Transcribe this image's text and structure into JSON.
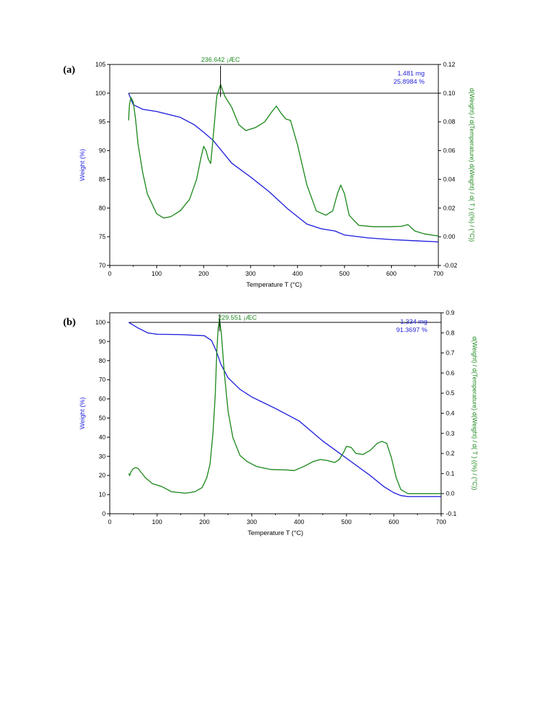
{
  "chart_data": [
    {
      "panel_label": "(a)",
      "type": "line",
      "xlabel": "Temperature  T  (°C)",
      "ylabel_left": "Weight  (%)",
      "ylabel_right": "d(Weight) / d(Temperature) d(Weight) / d( T )  ((%) / (°C))",
      "xlim": [
        0,
        700
      ],
      "ylim_left": [
        70,
        105
      ],
      "ylim_right": [
        -0.02,
        0.12
      ],
      "xticks": [
        0,
        100,
        200,
        300,
        400,
        500,
        600,
        700
      ],
      "yticks_left": [
        70,
        75,
        80,
        85,
        90,
        95,
        100,
        105
      ],
      "yticks_right": [
        "-0.02",
        "0.00",
        "0.02",
        "0.04",
        "0.06",
        "0.08",
        "0.10",
        "0.12"
      ],
      "annotations": {
        "peak": "236.642 ¡ÆC",
        "mass": "1.481 mg",
        "loss": "25.8984 %"
      },
      "colors": {
        "weight": "#2222dd",
        "derivative": "#1e8a1e",
        "axis": "#000000"
      },
      "reference_line_y": 100,
      "series": [
        {
          "name": "Weight",
          "axis": "left",
          "x": [
            40,
            50,
            70,
            100,
            150,
            180,
            200,
            220,
            236,
            260,
            300,
            340,
            380,
            420,
            450,
            480,
            500,
            550,
            600,
            650,
            700
          ],
          "y": [
            100,
            98,
            97.2,
            96.8,
            95.8,
            94.5,
            93.2,
            91.8,
            90.2,
            87.8,
            85.4,
            82.8,
            79.8,
            77.2,
            76.4,
            76.0,
            75.3,
            74.8,
            74.5,
            74.3,
            74.1
          ]
        },
        {
          "name": "Derivative",
          "axis": "right",
          "x": [
            40,
            42,
            45,
            50,
            55,
            60,
            70,
            80,
            100,
            115,
            130,
            150,
            170,
            185,
            195,
            200,
            205,
            210,
            215,
            220,
            228,
            236,
            245,
            260,
            275,
            290,
            310,
            330,
            345,
            355,
            365,
            375,
            385,
            400,
            420,
            440,
            460,
            475,
            485,
            492,
            500,
            510,
            530,
            560,
            600,
            620,
            630,
            635,
            640,
            650,
            670,
            700
          ],
          "y": [
            0.081,
            0.092,
            0.097,
            0.094,
            0.082,
            0.065,
            0.045,
            0.03,
            0.016,
            0.013,
            0.014,
            0.018,
            0.026,
            0.04,
            0.056,
            0.063,
            0.06,
            0.054,
            0.051,
            0.068,
            0.098,
            0.106,
            0.098,
            0.09,
            0.078,
            0.074,
            0.076,
            0.08,
            0.087,
            0.091,
            0.086,
            0.082,
            0.081,
            0.064,
            0.036,
            0.018,
            0.015,
            0.018,
            0.03,
            0.036,
            0.03,
            0.015,
            0.008,
            0.007,
            0.007,
            0.0072,
            0.008,
            0.0085,
            0.007,
            0.004,
            0.002,
            0.0005
          ]
        }
      ]
    },
    {
      "panel_label": "(b)",
      "type": "line",
      "xlabel": "Temperature  T  (°C)",
      "ylabel_left": "Weight  (%)",
      "ylabel_right": "d(Weight) / d(Temperature) d(Weight) / d( T )  ((%) / (°C))",
      "xlim": [
        0,
        700
      ],
      "ylim_left": [
        0,
        105
      ],
      "ylim_right": [
        -0.1,
        0.9
      ],
      "xticks": [
        0,
        100,
        200,
        300,
        400,
        500,
        600,
        700
      ],
      "yticks_left": [
        0,
        10,
        20,
        30,
        40,
        50,
        60,
        70,
        80,
        90,
        100
      ],
      "yticks_right": [
        "-0.1",
        "0.0",
        "0.1",
        "0.2",
        "0.3",
        "0.4",
        "0.5",
        "0.6",
        "0.7",
        "0.8",
        "0.9"
      ],
      "annotations": {
        "peak": "229.551 ¡ÆC",
        "mass": "1.334 mg",
        "loss": "91.3697 %"
      },
      "colors": {
        "weight": "#2222dd",
        "derivative": "#1e8a1e",
        "axis": "#000000"
      },
      "reference_line_y": 100,
      "series": [
        {
          "name": "Weight",
          "axis": "left",
          "x": [
            40,
            60,
            80,
            100,
            150,
            200,
            215,
            225,
            235,
            250,
            275,
            300,
            350,
            400,
            450,
            500,
            550,
            580,
            600,
            615,
            630,
            660,
            700
          ],
          "y": [
            100,
            97,
            94.5,
            93.8,
            93.6,
            93,
            90.5,
            85,
            78,
            71,
            65,
            61,
            55,
            48.5,
            38,
            29,
            20,
            14,
            11,
            9.5,
            9,
            9,
            9
          ]
        },
        {
          "name": "Derivative",
          "axis": "right",
          "x": [
            40,
            42,
            45,
            50,
            55,
            60,
            65,
            75,
            90,
            110,
            130,
            160,
            180,
            195,
            205,
            212,
            218,
            223,
            226,
            229,
            232,
            236,
            242,
            250,
            260,
            275,
            290,
            310,
            340,
            370,
            390,
            410,
            430,
            445,
            460,
            475,
            485,
            495,
            500,
            510,
            520,
            535,
            550,
            565,
            575,
            585,
            595,
            605,
            615,
            630,
            660,
            700
          ],
          "y": [
            0.1,
            0.09,
            0.11,
            0.125,
            0.13,
            0.125,
            0.11,
            0.08,
            0.05,
            0.035,
            0.01,
            0.002,
            0.01,
            0.03,
            0.08,
            0.15,
            0.3,
            0.5,
            0.7,
            0.82,
            0.87,
            0.79,
            0.6,
            0.41,
            0.28,
            0.19,
            0.16,
            0.135,
            0.12,
            0.118,
            0.115,
            0.135,
            0.16,
            0.17,
            0.165,
            0.155,
            0.17,
            0.21,
            0.235,
            0.23,
            0.2,
            0.195,
            0.215,
            0.25,
            0.26,
            0.25,
            0.18,
            0.08,
            0.02,
            0.0,
            0.0,
            0.0
          ]
        }
      ]
    }
  ]
}
